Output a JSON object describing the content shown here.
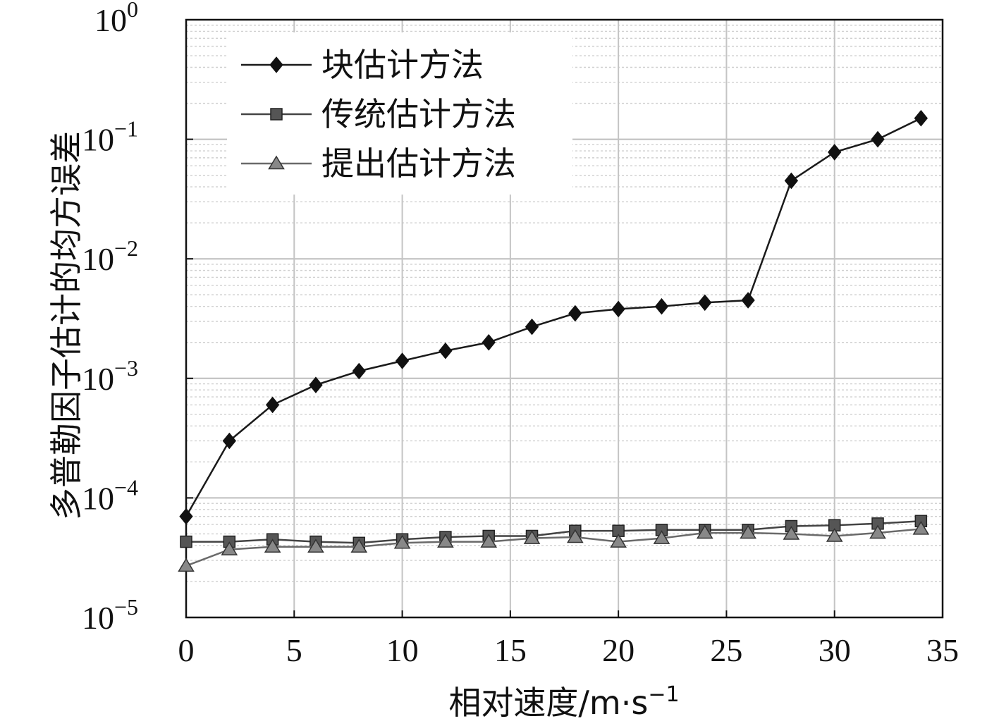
{
  "chart_data": {
    "type": "line",
    "title": "",
    "xlabel": "相对速度/m·s",
    "xlabel_exponent": "−1",
    "ylabel": "多普勒因子估计的均方误差",
    "xlim": [
      0,
      35
    ],
    "ylim": [
      1e-05,
      1
    ],
    "yscale": "log",
    "grid": true,
    "legend_position": "top-left",
    "x_ticks": [
      "0",
      "5",
      "10",
      "15",
      "20",
      "25",
      "30",
      "35"
    ],
    "y_ticks": [
      {
        "base": "10",
        "exp": "0"
      },
      {
        "base": "10",
        "exp": "−1"
      },
      {
        "base": "10",
        "exp": "−2"
      },
      {
        "base": "10",
        "exp": "−3"
      },
      {
        "base": "10",
        "exp": "−4"
      },
      {
        "base": "10",
        "exp": "−5"
      }
    ],
    "x": [
      0,
      2,
      4,
      6,
      8,
      10,
      12,
      14,
      16,
      18,
      20,
      22,
      24,
      26,
      28,
      30,
      32,
      34
    ],
    "series": [
      {
        "name": "块估计方法",
        "marker": "diamond",
        "color": "#1a1a1a",
        "values": [
          7e-05,
          0.0003,
          0.0006,
          0.00088,
          0.00115,
          0.0014,
          0.0017,
          0.002,
          0.0027,
          0.0035,
          0.0038,
          0.004,
          0.0043,
          0.0045,
          0.045,
          0.078,
          0.1,
          0.15
        ]
      },
      {
        "name": "传统估计方法",
        "marker": "square",
        "color": "#444444",
        "values": [
          4.3e-05,
          4.3e-05,
          4.5e-05,
          4.3e-05,
          4.2e-05,
          4.5e-05,
          4.7e-05,
          4.8e-05,
          4.8e-05,
          5.3e-05,
          5.3e-05,
          5.4e-05,
          5.4e-05,
          5.4e-05,
          5.8e-05,
          5.9e-05,
          6.1e-05,
          6.4e-05
        ]
      },
      {
        "name": "提出估计方法",
        "marker": "triangle",
        "color": "#6a6a6a",
        "values": [
          2.7e-05,
          3.7e-05,
          3.9e-05,
          3.9e-05,
          3.9e-05,
          4.2e-05,
          4.3e-05,
          4.3e-05,
          4.6e-05,
          4.7e-05,
          4.3e-05,
          4.6e-05,
          5.1e-05,
          5.1e-05,
          5e-05,
          4.8e-05,
          5.1e-05,
          5.5e-05
        ]
      }
    ]
  }
}
